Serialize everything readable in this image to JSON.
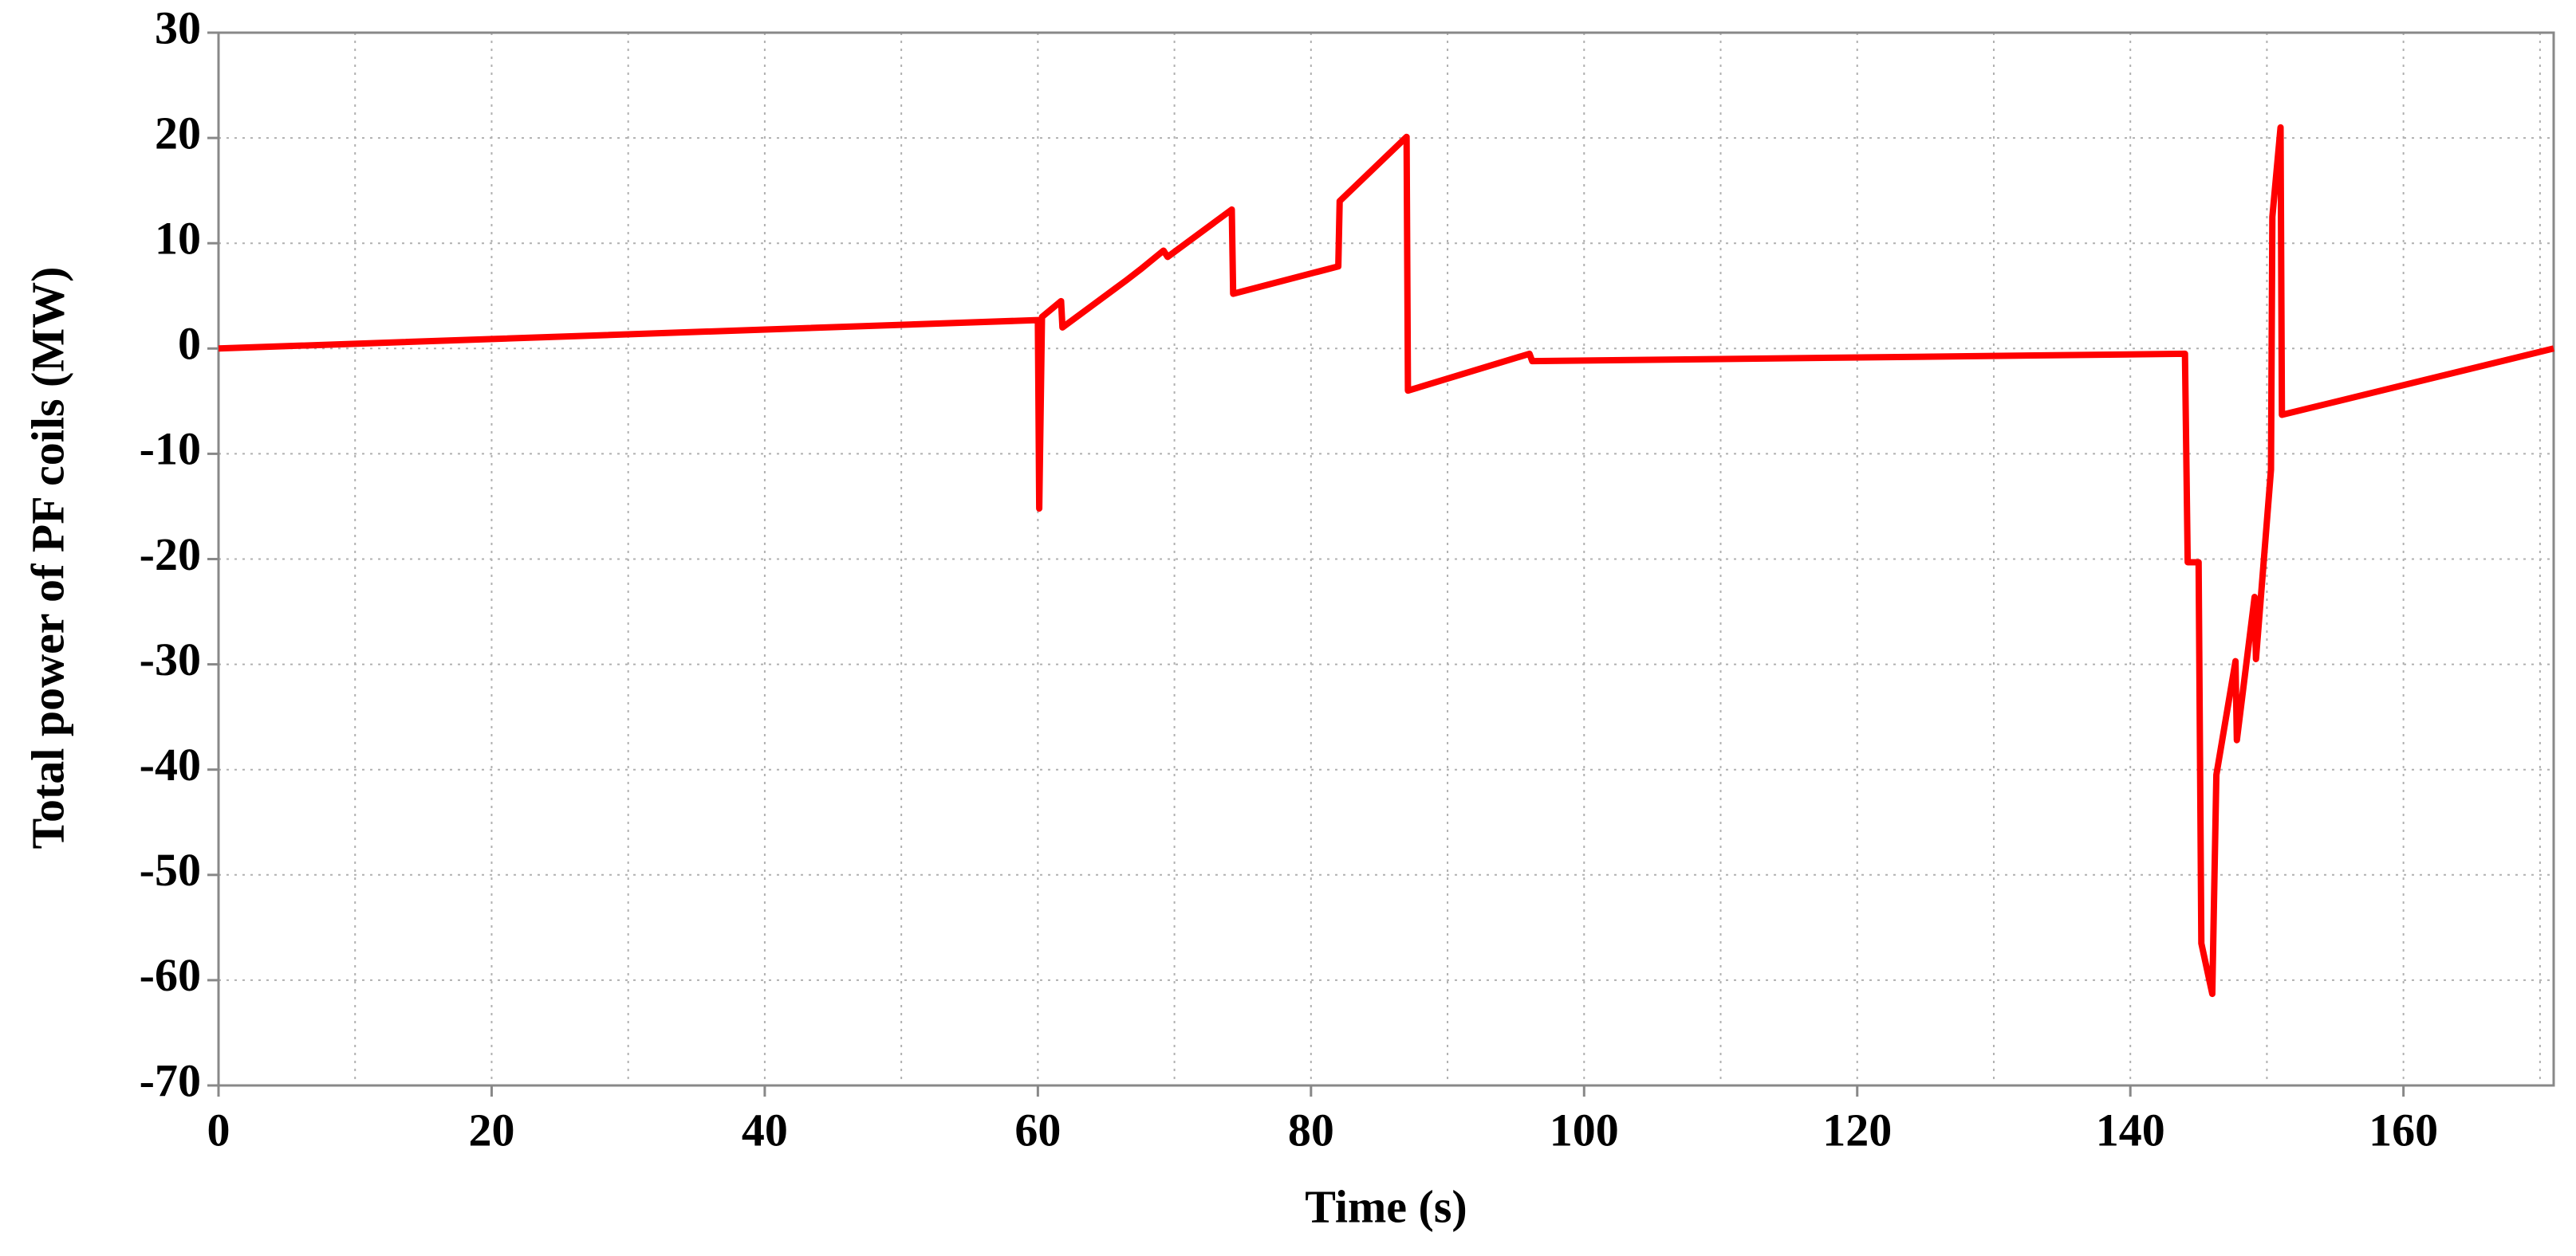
{
  "chart_data": {
    "type": "line",
    "xlabel": "Time (s)",
    "ylabel": "Total power of PF coils (MW)",
    "xlim": [
      0,
      171
    ],
    "ylim": [
      -70,
      30
    ],
    "xticks": [
      0,
      20,
      40,
      60,
      80,
      100,
      120,
      140,
      160
    ],
    "x_minor_ticks": [
      10,
      30,
      50,
      70,
      90,
      110,
      130,
      150,
      170
    ],
    "yticks": [
      -70,
      -60,
      -50,
      -40,
      -30,
      -20,
      -10,
      0,
      10,
      20,
      30
    ],
    "grid": true,
    "series": [
      {
        "color": "#ff0000",
        "x": [
          0,
          60,
          60.1,
          60.3,
          61.7,
          61.8,
          66.5,
          67.5,
          69.2,
          69.5,
          74.2,
          74.3,
          82,
          82.1,
          87,
          87.1,
          96,
          96.2,
          144,
          144.2,
          145,
          145.2,
          146,
          146.3,
          147.7,
          147.8,
          149.1,
          149.2,
          150.3,
          150.4,
          151,
          151.1,
          171
        ],
        "values": [
          0,
          2.7,
          -15.2,
          3,
          4.5,
          2,
          6.5,
          7.5,
          9.3,
          8.7,
          13.2,
          5.2,
          7.8,
          14,
          20.1,
          -4,
          -0.5,
          -1.2,
          -0.5,
          -20.3,
          -20.3,
          -56.5,
          -61.3,
          -40.5,
          -29.7,
          -37.2,
          -23.6,
          -29.5,
          -11.5,
          12.5,
          21,
          -6.3,
          0
        ]
      }
    ]
  }
}
